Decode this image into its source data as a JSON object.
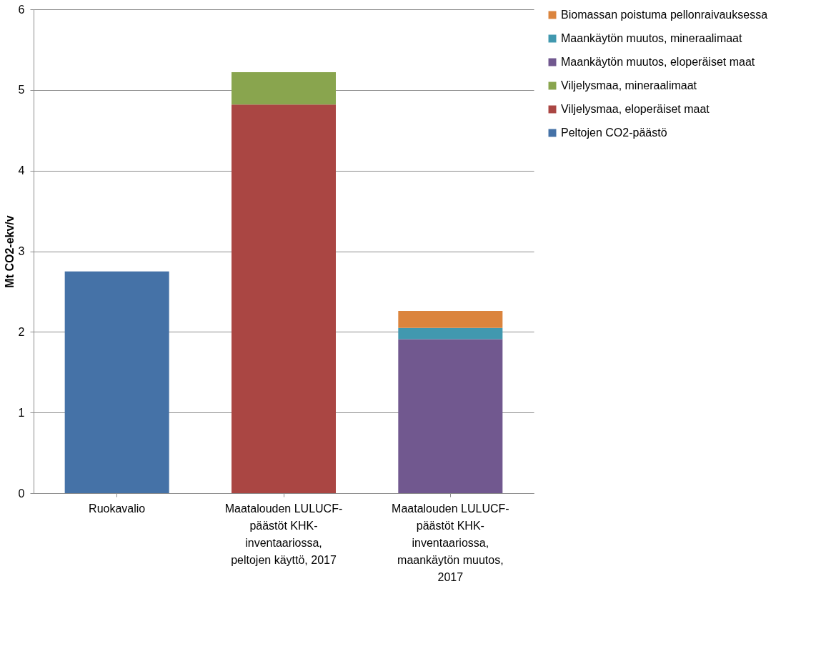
{
  "chart_data": {
    "type": "bar",
    "stacked": true,
    "ylabel": "Mt CO2-ekv/v",
    "categories": [
      "Ruokavalio",
      "Maatalouden LULUCF-päästöt KHK-inventaariossa, peltojen käyttö, 2017",
      "Maatalouden LULUCF-päästöt KHK-inventaariossa, maankäytön muutos, 2017"
    ],
    "series": [
      {
        "name": "Peltojen CO2-päästö",
        "color": "#4572a7",
        "values": [
          2.75,
          null,
          null
        ]
      },
      {
        "name": "Viljelysmaa, eloperäiset maat",
        "color": "#aa4643",
        "values": [
          null,
          4.82,
          null
        ]
      },
      {
        "name": "Viljelysmaa, mineraalimaat",
        "color": "#89a54e",
        "values": [
          null,
          0.4,
          null
        ]
      },
      {
        "name": "Maankäytön muutos, eloperäiset maat",
        "color": "#71588f",
        "values": [
          null,
          null,
          1.91
        ]
      },
      {
        "name": "Maankäytön muutos, mineraalimaat",
        "color": "#4198af",
        "values": [
          null,
          null,
          0.14
        ]
      },
      {
        "name": "Biomassan poistuma pellonraivauksessa",
        "color": "#db843d",
        "values": [
          null,
          null,
          0.21
        ]
      }
    ],
    "ylim": [
      0,
      6
    ],
    "yticks": [
      0,
      1,
      2,
      3,
      4,
      5,
      6
    ],
    "grid": "y",
    "legend": "right"
  }
}
